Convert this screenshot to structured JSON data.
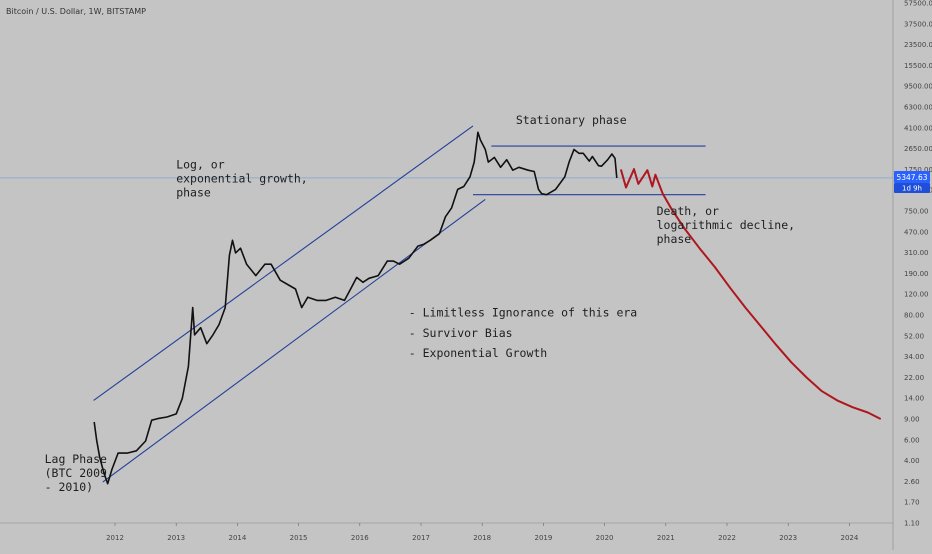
{
  "chart_data": {
    "type": "line",
    "header": "Bitcoin / U.S. Dollar, 1W, BITSTAMP",
    "y_scale": "log",
    "grid": false,
    "y_ticks": [
      "57500.00",
      "37500.00",
      "23500.00",
      "15500.00",
      "9500.00",
      "6300.00",
      "4100.00",
      "2650.00",
      "1750.00",
      "1150.00",
      "750.00",
      "470.00",
      "310.00",
      "190.00",
      "120.00",
      "80.00",
      "52.00",
      "34.00",
      "22.00",
      "14.00",
      "9.00",
      "6.00",
      "4.00",
      "2.60",
      "1.70",
      "1.10"
    ],
    "x_ticks": [
      {
        "label": "2012",
        "t": 2012.0
      },
      {
        "label": "2013",
        "t": 2013.0
      },
      {
        "label": "2014",
        "t": 2014.0
      },
      {
        "label": "2015",
        "t": 2015.0
      },
      {
        "label": "2016",
        "t": 2016.0
      },
      {
        "label": "2017",
        "t": 2017.0
      },
      {
        "label": "2018",
        "t": 2018.0
      },
      {
        "label": "2019",
        "t": 2019.0
      },
      {
        "label": "2020",
        "t": 2020.0
      },
      {
        "label": "2021",
        "t": 2021.0
      },
      {
        "label": "2022",
        "t": 2022.0
      },
      {
        "label": "2023",
        "t": 2023.0
      },
      {
        "label": "2024",
        "t": 2024.0
      }
    ],
    "price_badge": {
      "value": "5347.63",
      "countdown": "1d 9h",
      "level": 5347.63
    },
    "price_series": [
      [
        2011.66,
        11
      ],
      [
        2011.7,
        7
      ],
      [
        2011.75,
        4.5
      ],
      [
        2011.82,
        3.0
      ],
      [
        2011.88,
        2.3
      ],
      [
        2011.95,
        3.3
      ],
      [
        2012.05,
        5.0
      ],
      [
        2012.2,
        5.0
      ],
      [
        2012.35,
        5.3
      ],
      [
        2012.5,
        6.8
      ],
      [
        2012.6,
        11.5
      ],
      [
        2012.7,
        12.0
      ],
      [
        2012.85,
        12.5
      ],
      [
        2013.0,
        13.5
      ],
      [
        2013.1,
        20
      ],
      [
        2013.2,
        45
      ],
      [
        2013.27,
        200
      ],
      [
        2013.3,
        100
      ],
      [
        2013.4,
        120
      ],
      [
        2013.5,
        80
      ],
      [
        2013.6,
        100
      ],
      [
        2013.7,
        130
      ],
      [
        2013.8,
        200
      ],
      [
        2013.87,
        750
      ],
      [
        2013.92,
        1100
      ],
      [
        2013.97,
        800
      ],
      [
        2014.05,
        900
      ],
      [
        2014.15,
        600
      ],
      [
        2014.3,
        450
      ],
      [
        2014.45,
        600
      ],
      [
        2014.55,
        600
      ],
      [
        2014.7,
        400
      ],
      [
        2014.85,
        350
      ],
      [
        2014.95,
        320
      ],
      [
        2015.05,
        200
      ],
      [
        2015.15,
        260
      ],
      [
        2015.3,
        240
      ],
      [
        2015.45,
        240
      ],
      [
        2015.6,
        260
      ],
      [
        2015.75,
        240
      ],
      [
        2015.85,
        320
      ],
      [
        2015.95,
        430
      ],
      [
        2016.05,
        380
      ],
      [
        2016.15,
        420
      ],
      [
        2016.3,
        450
      ],
      [
        2016.45,
        650
      ],
      [
        2016.55,
        650
      ],
      [
        2016.65,
        600
      ],
      [
        2016.8,
        700
      ],
      [
        2016.95,
        950
      ],
      [
        2017.05,
        1000
      ],
      [
        2017.15,
        1100
      ],
      [
        2017.3,
        1300
      ],
      [
        2017.4,
        2000
      ],
      [
        2017.5,
        2500
      ],
      [
        2017.6,
        4000
      ],
      [
        2017.7,
        4300
      ],
      [
        2017.8,
        5500
      ],
      [
        2017.87,
        8000
      ],
      [
        2017.93,
        17000
      ],
      [
        2017.97,
        14000
      ],
      [
        2018.05,
        11000
      ],
      [
        2018.1,
        8000
      ],
      [
        2018.2,
        9000
      ],
      [
        2018.3,
        7000
      ],
      [
        2018.4,
        8500
      ],
      [
        2018.5,
        6500
      ],
      [
        2018.6,
        7000
      ],
      [
        2018.75,
        6500
      ],
      [
        2018.85,
        6300
      ],
      [
        2018.92,
        4000
      ],
      [
        2018.97,
        3600
      ],
      [
        2019.05,
        3500
      ],
      [
        2019.2,
        4000
      ],
      [
        2019.35,
        5500
      ],
      [
        2019.42,
        8000
      ],
      [
        2019.5,
        11000
      ],
      [
        2019.58,
        10000
      ],
      [
        2019.65,
        10000
      ],
      [
        2019.75,
        8200
      ],
      [
        2019.8,
        9200
      ],
      [
        2019.9,
        7300
      ],
      [
        2019.95,
        7200
      ],
      [
        2020.05,
        8500
      ],
      [
        2020.12,
        9800
      ],
      [
        2020.17,
        8800
      ],
      [
        2020.2,
        5350
      ]
    ],
    "channel_lines": [
      {
        "name": "upper",
        "from": [
          2011.65,
          19
        ],
        "to": [
          2017.85,
          20000
        ]
      },
      {
        "name": "lower",
        "from": [
          2011.8,
          2.4
        ],
        "to": [
          2018.05,
          3100
        ]
      },
      {
        "name": "range_top",
        "from": [
          2018.15,
          12000
        ],
        "to": [
          2021.65,
          12000
        ]
      },
      {
        "name": "range_bottom",
        "from": [
          2017.85,
          3500
        ],
        "to": [
          2021.65,
          3500
        ]
      }
    ],
    "projection": [
      [
        2020.27,
        6500
      ],
      [
        2020.35,
        4200
      ],
      [
        2020.48,
        6700
      ],
      [
        2020.55,
        4600
      ],
      [
        2020.7,
        6500
      ],
      [
        2020.78,
        4300
      ],
      [
        2020.83,
        5800
      ],
      [
        2020.95,
        3600
      ],
      [
        2021.1,
        2400
      ],
      [
        2021.3,
        1500
      ],
      [
        2021.55,
        900
      ],
      [
        2021.8,
        560
      ],
      [
        2022.05,
        330
      ],
      [
        2022.3,
        200
      ],
      [
        2022.55,
        125
      ],
      [
        2022.8,
        78
      ],
      [
        2023.05,
        50
      ],
      [
        2023.3,
        34
      ],
      [
        2023.55,
        24
      ],
      [
        2023.8,
        19
      ],
      [
        2024.05,
        16
      ],
      [
        2024.3,
        14
      ],
      [
        2024.5,
        12
      ]
    ],
    "annotations": [
      {
        "lines": [
          "Stationary phase"
        ],
        "t": 2018.55,
        "p": 21000
      },
      {
        "lines": [
          "Log, or",
          "exponential growth,",
          "phase"
        ],
        "t": 2013.0,
        "p": 6800
      },
      {
        "lines": [
          "Death, or",
          "logarithmic decline,",
          "phase"
        ],
        "t": 2020.85,
        "p": 2100
      },
      {
        "lines": [
          "- Limitless Ignorance of this era"
        ],
        "t": 2016.8,
        "p": 160
      },
      {
        "lines": [
          "- Survivor Bias"
        ],
        "t": 2016.8,
        "p": 95
      },
      {
        "lines": [
          "- Exponential Growth"
        ],
        "t": 2016.8,
        "p": 57
      },
      {
        "lines": [
          "Lag Phase",
          "(BTC 2009",
          "- 2010)"
        ],
        "t": 2010.85,
        "p": 3.9
      }
    ],
    "colors": {
      "background": "#c4c4c4",
      "channel": "#23409a",
      "projection": "#b0161e",
      "price": "#111111",
      "price_level": "#6f9fd2",
      "badge": "#2962ff"
    }
  }
}
